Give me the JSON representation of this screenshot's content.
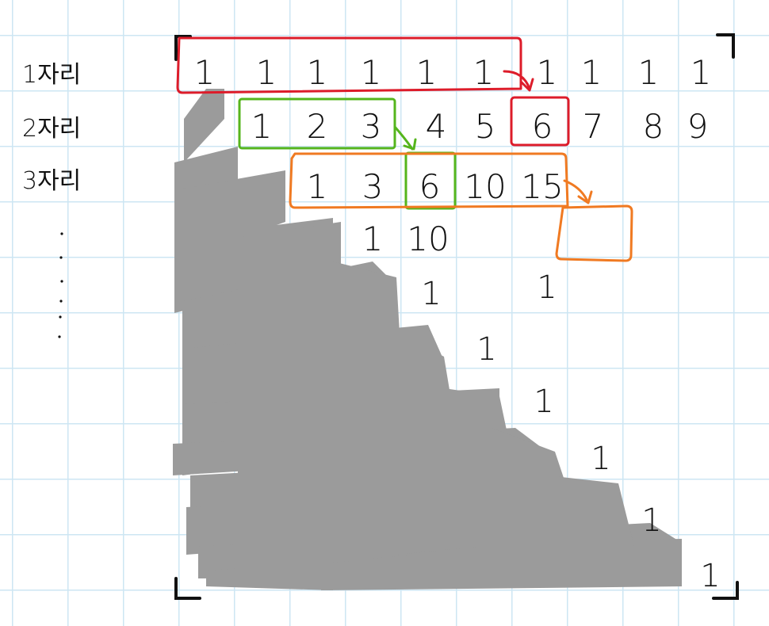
{
  "labels": {
    "row1": "1자리",
    "row2": "2자리",
    "row3": "3자리"
  },
  "rows": {
    "row1": [
      "1",
      "1",
      "1",
      "1",
      "1",
      "1",
      "1",
      "1",
      "1",
      "1"
    ],
    "row2": [
      "1",
      "2",
      "3",
      "4",
      "5",
      "6",
      "7",
      "8",
      "9"
    ],
    "row3": [
      "1",
      "3",
      "6",
      "10",
      "15"
    ],
    "row4": [
      "1",
      "10"
    ]
  },
  "diagonal_ones": [
    "1",
    "1",
    "1",
    "1",
    "1",
    "1",
    "1"
  ],
  "colors": {
    "red": "#dd1c2a",
    "green": "#55b51c",
    "orange": "#f07a22",
    "shade": "#9b9b9b",
    "ink": "#111111"
  }
}
